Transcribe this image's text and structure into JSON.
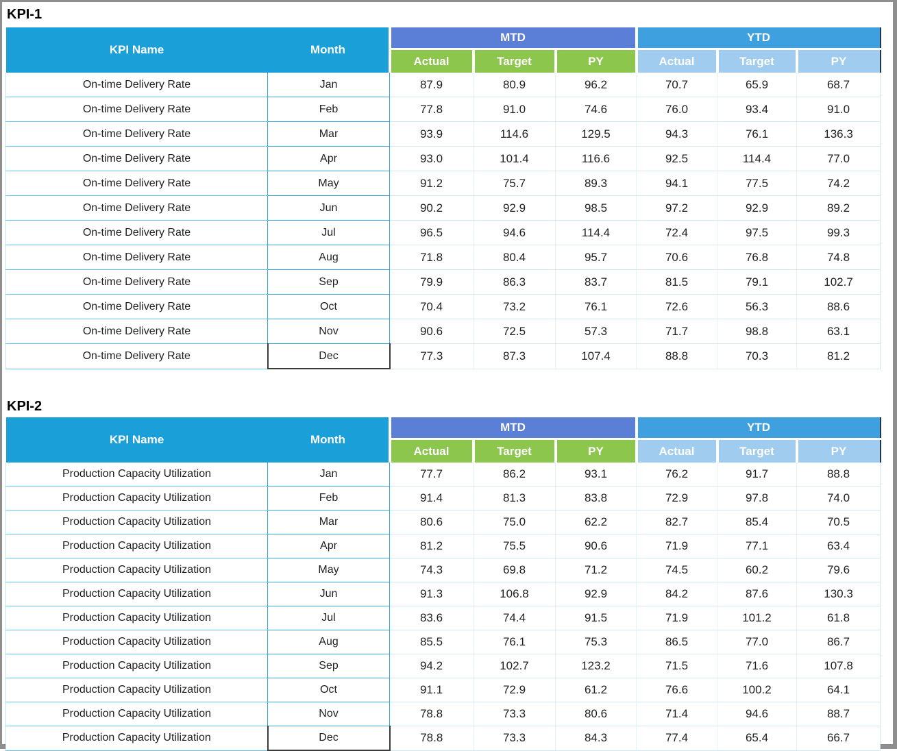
{
  "colors": {
    "header_cyan": "#1A9FD8",
    "mtd_band_blue": "#5B7ED7",
    "mtd_sub_green": "#8CC64C",
    "ytd_band_blue": "#3FA0E0",
    "ytd_sub_lightblue": "#A0CCF0",
    "row_line_cyan": "#2FA8DA",
    "dec_cell_outline": "#3A3A3A",
    "frame_gray": "#8E8E8E"
  },
  "tables": [
    {
      "title": "KPI-1",
      "kpi_name": "On-time Delivery Rate",
      "headers": {
        "kpi_name": "KPI Name",
        "month": "Month",
        "mtd": "MTD",
        "ytd": "YTD",
        "sub": [
          "Actual",
          "Target",
          "PY"
        ]
      },
      "rows": [
        {
          "month": "Jan",
          "values": [
            "87.9",
            "80.9",
            "96.2",
            "70.7",
            "65.9",
            "68.7"
          ]
        },
        {
          "month": "Feb",
          "values": [
            "77.8",
            "91.0",
            "74.6",
            "76.0",
            "93.4",
            "91.0"
          ]
        },
        {
          "month": "Mar",
          "values": [
            "93.9",
            "114.6",
            "129.5",
            "94.3",
            "76.1",
            "136.3"
          ]
        },
        {
          "month": "Apr",
          "values": [
            "93.0",
            "101.4",
            "116.6",
            "92.5",
            "114.4",
            "77.0"
          ]
        },
        {
          "month": "May",
          "values": [
            "91.2",
            "75.7",
            "89.3",
            "94.1",
            "77.5",
            "74.2"
          ]
        },
        {
          "month": "Jun",
          "values": [
            "90.2",
            "92.9",
            "98.5",
            "97.2",
            "92.9",
            "89.2"
          ]
        },
        {
          "month": "Jul",
          "values": [
            "96.5",
            "94.6",
            "114.4",
            "72.4",
            "97.5",
            "99.3"
          ]
        },
        {
          "month": "Aug",
          "values": [
            "71.8",
            "80.4",
            "95.7",
            "70.6",
            "76.8",
            "74.8"
          ]
        },
        {
          "month": "Sep",
          "values": [
            "79.9",
            "86.3",
            "83.7",
            "81.5",
            "79.1",
            "102.7"
          ]
        },
        {
          "month": "Oct",
          "values": [
            "70.4",
            "73.2",
            "76.1",
            "72.6",
            "56.3",
            "88.6"
          ]
        },
        {
          "month": "Nov",
          "values": [
            "90.6",
            "72.5",
            "57.3",
            "71.7",
            "98.8",
            "63.1"
          ]
        },
        {
          "month": "Dec",
          "values": [
            "77.3",
            "87.3",
            "107.4",
            "88.8",
            "70.3",
            "81.2"
          ]
        }
      ]
    },
    {
      "title": "KPI-2",
      "kpi_name": "Production Capacity Utilization",
      "headers": {
        "kpi_name": "KPI Name",
        "month": "Month",
        "mtd": "MTD",
        "ytd": "YTD",
        "sub": [
          "Actual",
          "Target",
          "PY"
        ]
      },
      "rows": [
        {
          "month": "Jan",
          "values": [
            "77.7",
            "86.2",
            "93.1",
            "76.2",
            "91.7",
            "88.8"
          ]
        },
        {
          "month": "Feb",
          "values": [
            "91.4",
            "81.3",
            "83.8",
            "72.9",
            "97.8",
            "74.0"
          ]
        },
        {
          "month": "Mar",
          "values": [
            "80.6",
            "75.0",
            "62.2",
            "82.7",
            "85.4",
            "70.5"
          ]
        },
        {
          "month": "Apr",
          "values": [
            "81.2",
            "75.5",
            "90.6",
            "71.9",
            "77.1",
            "63.4"
          ]
        },
        {
          "month": "May",
          "values": [
            "74.3",
            "69.8",
            "71.2",
            "74.5",
            "60.2",
            "79.6"
          ]
        },
        {
          "month": "Jun",
          "values": [
            "91.3",
            "106.8",
            "92.9",
            "84.2",
            "87.6",
            "130.3"
          ]
        },
        {
          "month": "Jul",
          "values": [
            "83.6",
            "74.4",
            "91.5",
            "71.9",
            "101.2",
            "61.8"
          ]
        },
        {
          "month": "Aug",
          "values": [
            "85.5",
            "76.1",
            "75.3",
            "86.5",
            "77.0",
            "86.7"
          ]
        },
        {
          "month": "Sep",
          "values": [
            "94.2",
            "102.7",
            "123.2",
            "71.5",
            "71.6",
            "107.8"
          ]
        },
        {
          "month": "Oct",
          "values": [
            "91.1",
            "72.9",
            "61.2",
            "76.6",
            "100.2",
            "64.1"
          ]
        },
        {
          "month": "Nov",
          "values": [
            "78.8",
            "73.3",
            "80.6",
            "71.4",
            "94.6",
            "88.7"
          ]
        },
        {
          "month": "Dec",
          "values": [
            "78.8",
            "73.3",
            "84.3",
            "77.4",
            "65.4",
            "66.7"
          ]
        }
      ]
    }
  ],
  "chart_data": [
    {
      "type": "table",
      "title": "KPI-1",
      "kpi_name": "On-time Delivery Rate",
      "columns": [
        "Month",
        "MTD Actual",
        "MTD Target",
        "MTD PY",
        "YTD Actual",
        "YTD Target",
        "YTD PY"
      ],
      "rows": [
        [
          "Jan",
          87.9,
          80.9,
          96.2,
          70.7,
          65.9,
          68.7
        ],
        [
          "Feb",
          77.8,
          91.0,
          74.6,
          76.0,
          93.4,
          91.0
        ],
        [
          "Mar",
          93.9,
          114.6,
          129.5,
          94.3,
          76.1,
          136.3
        ],
        [
          "Apr",
          93.0,
          101.4,
          116.6,
          92.5,
          114.4,
          77.0
        ],
        [
          "May",
          91.2,
          75.7,
          89.3,
          94.1,
          77.5,
          74.2
        ],
        [
          "Jun",
          90.2,
          92.9,
          98.5,
          97.2,
          92.9,
          89.2
        ],
        [
          "Jul",
          96.5,
          94.6,
          114.4,
          72.4,
          97.5,
          99.3
        ],
        [
          "Aug",
          71.8,
          80.4,
          95.7,
          70.6,
          76.8,
          74.8
        ],
        [
          "Sep",
          79.9,
          86.3,
          83.7,
          81.5,
          79.1,
          102.7
        ],
        [
          "Oct",
          70.4,
          73.2,
          76.1,
          72.6,
          56.3,
          88.6
        ],
        [
          "Nov",
          90.6,
          72.5,
          57.3,
          71.7,
          98.8,
          63.1
        ],
        [
          "Dec",
          77.3,
          87.3,
          107.4,
          88.8,
          70.3,
          81.2
        ]
      ]
    },
    {
      "type": "table",
      "title": "KPI-2",
      "kpi_name": "Production Capacity Utilization",
      "columns": [
        "Month",
        "MTD Actual",
        "MTD Target",
        "MTD PY",
        "YTD Actual",
        "YTD Target",
        "YTD PY"
      ],
      "rows": [
        [
          "Jan",
          77.7,
          86.2,
          93.1,
          76.2,
          91.7,
          88.8
        ],
        [
          "Feb",
          91.4,
          81.3,
          83.8,
          72.9,
          97.8,
          74.0
        ],
        [
          "Mar",
          80.6,
          75.0,
          62.2,
          82.7,
          85.4,
          70.5
        ],
        [
          "Apr",
          81.2,
          75.5,
          90.6,
          71.9,
          77.1,
          63.4
        ],
        [
          "May",
          74.3,
          69.8,
          71.2,
          74.5,
          60.2,
          79.6
        ],
        [
          "Jun",
          91.3,
          106.8,
          92.9,
          84.2,
          87.6,
          130.3
        ],
        [
          "Jul",
          83.6,
          74.4,
          91.5,
          71.9,
          101.2,
          61.8
        ],
        [
          "Aug",
          85.5,
          76.1,
          75.3,
          86.5,
          77.0,
          86.7
        ],
        [
          "Sep",
          94.2,
          102.7,
          123.2,
          71.5,
          71.6,
          107.8
        ],
        [
          "Oct",
          91.1,
          72.9,
          61.2,
          76.6,
          100.2,
          64.1
        ],
        [
          "Nov",
          78.8,
          73.3,
          80.6,
          71.4,
          94.6,
          88.7
        ],
        [
          "Dec",
          78.8,
          73.3,
          84.3,
          77.4,
          65.4,
          66.7
        ]
      ]
    }
  ]
}
